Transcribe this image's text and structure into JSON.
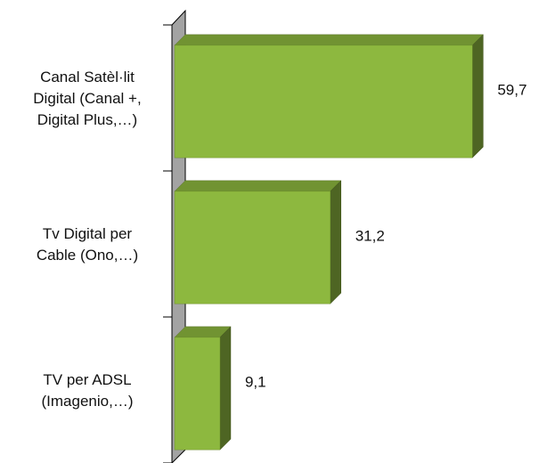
{
  "chart_data": {
    "type": "bar",
    "orientation": "horizontal",
    "categories": [
      [
        "Canal Satèl·lit",
        "Digital (Canal +,",
        "Digital Plus,…)"
      ],
      [
        "Tv Digital per",
        "Cable (Ono,…)"
      ],
      [
        "TV per ADSL",
        "(Imagenio,…)"
      ]
    ],
    "values": [
      59.7,
      31.2,
      9.1
    ],
    "value_labels": [
      "59,7",
      "31,2",
      "9,1"
    ],
    "color": "#8db83f",
    "xlim": [
      0,
      60
    ]
  }
}
